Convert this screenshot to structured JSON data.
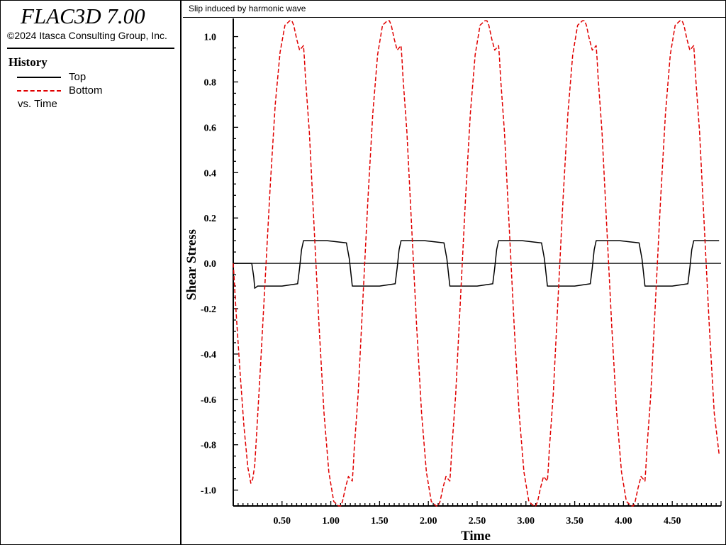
{
  "app": {
    "title": "FLAC3D 7.00",
    "copyright": "©2024 Itasca Consulting Group, Inc."
  },
  "legend": {
    "heading": "History",
    "items": [
      {
        "label": "Top",
        "color": "#000000",
        "style": "solid"
      },
      {
        "label": "Bottom",
        "color": "#e00000",
        "style": "dashed"
      }
    ],
    "vs_label": "vs. Time"
  },
  "chart_data": {
    "type": "line",
    "title": "Slip induced by harmonic wave",
    "xlabel": "Time",
    "ylabel": "Shear Stress",
    "xlim": [
      0.0,
      5.0
    ],
    "ylim": [
      -1.07,
      1.08
    ],
    "x_ticks": [
      "0.50",
      "1.00",
      "1.50",
      "2.00",
      "2.50",
      "3.00",
      "3.50",
      "4.00",
      "4.50"
    ],
    "y_ticks": [
      "1.0",
      "0.8",
      "0.6",
      "0.4",
      "0.2",
      "0.0",
      "-0.2",
      "-0.4",
      "-0.6",
      "-0.8",
      "-1.0"
    ],
    "zero_line": true,
    "grid": false,
    "series": [
      {
        "name": "Top",
        "color": "#000000",
        "style": "solid",
        "x": [
          0.0,
          0.19,
          0.21,
          0.22,
          0.25,
          0.5,
          0.66,
          0.68,
          0.7,
          0.72,
          0.96,
          1.16,
          1.19,
          1.21,
          1.22,
          1.5,
          1.66,
          1.68,
          1.7,
          1.72,
          1.96,
          2.16,
          2.19,
          2.21,
          2.22,
          2.5,
          2.66,
          2.68,
          2.7,
          2.72,
          2.96,
          3.16,
          3.19,
          3.21,
          3.22,
          3.5,
          3.66,
          3.68,
          3.7,
          3.72,
          3.96,
          4.16,
          4.19,
          4.21,
          4.22,
          4.5,
          4.66,
          4.68,
          4.7,
          4.72,
          4.98
        ],
        "y": [
          0.0,
          0.0,
          -0.06,
          -0.11,
          -0.1,
          -0.1,
          -0.09,
          -0.02,
          0.06,
          0.1,
          0.1,
          0.09,
          0.02,
          -0.06,
          -0.1,
          -0.1,
          -0.09,
          -0.02,
          0.06,
          0.1,
          0.1,
          0.09,
          0.02,
          -0.06,
          -0.1,
          -0.1,
          -0.09,
          -0.02,
          0.06,
          0.1,
          0.1,
          0.09,
          0.02,
          -0.06,
          -0.1,
          -0.1,
          -0.09,
          -0.02,
          0.06,
          0.1,
          0.1,
          0.09,
          0.02,
          -0.06,
          -0.1,
          -0.1,
          -0.09,
          -0.02,
          0.06,
          0.1,
          0.1
        ]
      },
      {
        "name": "Bottom",
        "color": "#e00000",
        "style": "dashed",
        "x": [
          0.0,
          0.03,
          0.07,
          0.11,
          0.15,
          0.18,
          0.2,
          0.22,
          0.24,
          0.28,
          0.33,
          0.38,
          0.43,
          0.48,
          0.53,
          0.58,
          0.6,
          0.62,
          0.65,
          0.68,
          0.7,
          0.72,
          0.73,
          0.74,
          0.78,
          0.83,
          0.88,
          0.93,
          0.98,
          1.03,
          1.08,
          1.1,
          1.12,
          1.15,
          1.18,
          1.2,
          1.22,
          1.23,
          1.24,
          1.28,
          1.33,
          1.38,
          1.43,
          1.48,
          1.53,
          1.58,
          1.6,
          1.62,
          1.65,
          1.68,
          1.7,
          1.72,
          1.73,
          1.74,
          1.78,
          1.83,
          1.88,
          1.93,
          1.98,
          2.03,
          2.08,
          2.1,
          2.12,
          2.15,
          2.18,
          2.2,
          2.22,
          2.23,
          2.24,
          2.28,
          2.33,
          2.38,
          2.43,
          2.48,
          2.53,
          2.58,
          2.6,
          2.62,
          2.65,
          2.68,
          2.7,
          2.72,
          2.73,
          2.74,
          2.78,
          2.83,
          2.88,
          2.93,
          2.98,
          3.03,
          3.08,
          3.1,
          3.12,
          3.15,
          3.18,
          3.2,
          3.22,
          3.23,
          3.24,
          3.28,
          3.33,
          3.38,
          3.43,
          3.48,
          3.53,
          3.58,
          3.6,
          3.62,
          3.65,
          3.68,
          3.7,
          3.72,
          3.73,
          3.74,
          3.78,
          3.83,
          3.88,
          3.93,
          3.98,
          4.03,
          4.08,
          4.1,
          4.12,
          4.15,
          4.18,
          4.2,
          4.22,
          4.23,
          4.24,
          4.28,
          4.33,
          4.38,
          4.43,
          4.48,
          4.53,
          4.58,
          4.6,
          4.62,
          4.65,
          4.68,
          4.7,
          4.72,
          4.73,
          4.74,
          4.78,
          4.83,
          4.88,
          4.93,
          4.98
        ],
        "y": [
          0.0,
          -0.22,
          -0.48,
          -0.72,
          -0.9,
          -0.97,
          -0.95,
          -0.89,
          -0.75,
          -0.45,
          -0.05,
          0.35,
          0.7,
          0.93,
          1.05,
          1.07,
          1.07,
          1.05,
          0.99,
          0.94,
          0.95,
          0.96,
          0.9,
          0.82,
          0.58,
          0.15,
          -0.28,
          -0.66,
          -0.92,
          -1.05,
          -1.07,
          -1.07,
          -1.05,
          -0.99,
          -0.94,
          -0.95,
          -0.96,
          -0.9,
          -0.82,
          -0.58,
          -0.15,
          0.28,
          0.66,
          0.92,
          1.05,
          1.07,
          1.07,
          1.05,
          0.99,
          0.94,
          0.95,
          0.96,
          0.9,
          0.82,
          0.58,
          0.15,
          -0.28,
          -0.66,
          -0.92,
          -1.05,
          -1.07,
          -1.07,
          -1.05,
          -0.99,
          -0.94,
          -0.95,
          -0.96,
          -0.9,
          -0.82,
          -0.58,
          -0.15,
          0.28,
          0.66,
          0.92,
          1.05,
          1.07,
          1.07,
          1.05,
          0.99,
          0.94,
          0.95,
          0.96,
          0.9,
          0.82,
          0.58,
          0.15,
          -0.28,
          -0.66,
          -0.92,
          -1.05,
          -1.07,
          -1.07,
          -1.05,
          -0.99,
          -0.94,
          -0.95,
          -0.96,
          -0.9,
          -0.82,
          -0.58,
          -0.15,
          0.28,
          0.66,
          0.92,
          1.05,
          1.07,
          1.07,
          1.05,
          0.99,
          0.94,
          0.95,
          0.96,
          0.9,
          0.82,
          0.58,
          0.15,
          -0.28,
          -0.66,
          -0.92,
          -1.05,
          -1.07,
          -1.07,
          -1.05,
          -0.99,
          -0.94,
          -0.95,
          -0.96,
          -0.9,
          -0.82,
          -0.58,
          -0.15,
          0.28,
          0.66,
          0.92,
          1.05,
          1.07,
          1.07,
          1.05,
          0.99,
          0.94,
          0.95,
          0.96,
          0.9,
          0.82,
          0.58,
          0.15,
          -0.28,
          -0.66,
          -0.84
        ]
      }
    ]
  }
}
